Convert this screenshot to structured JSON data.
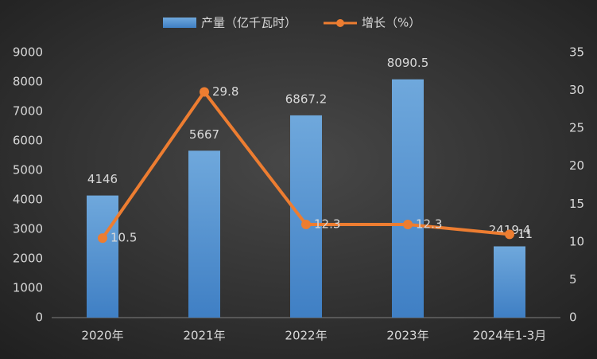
{
  "chart_data": {
    "type": "bar_line",
    "categories": [
      "2020年",
      "2021年",
      "2022年",
      "2023年",
      "2024年1-3月"
    ],
    "series": [
      {
        "name": "产量（亿千瓦时）",
        "color": "#5b9bd5",
        "values": [
          4146,
          5667,
          6867.2,
          8090.5,
          2419.4
        ],
        "type": "bar"
      },
      {
        "name": "增长（%）",
        "color": "#ed7d31",
        "values": [
          10.5,
          29.8,
          12.3,
          12.3,
          11
        ],
        "type": "line",
        "axis": "y2"
      }
    ],
    "ylim": [
      0,
      9000
    ],
    "yticks": [
      0,
      1000,
      2000,
      3000,
      4000,
      5000,
      6000,
      7000,
      8000,
      9000
    ],
    "y2lim": [
      0,
      35
    ],
    "y2ticks": [
      0,
      5,
      10,
      15,
      20,
      25,
      30,
      35
    ],
    "legend": "top"
  }
}
